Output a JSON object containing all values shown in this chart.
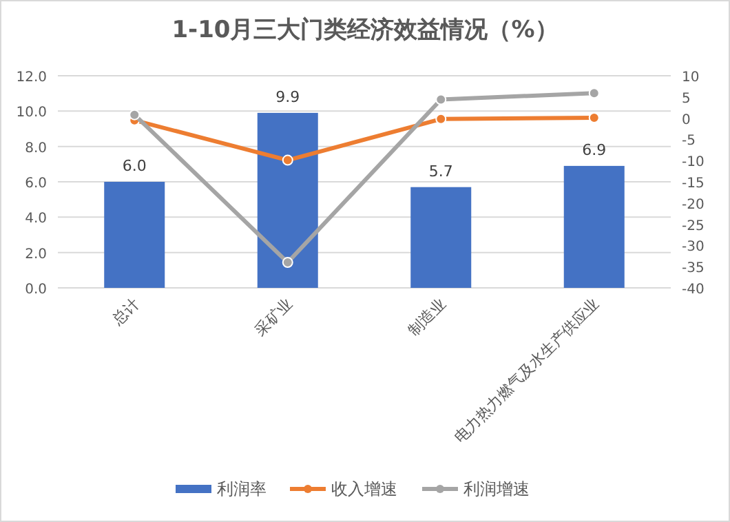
{
  "chart_data": {
    "type": "bar",
    "title": "1-10月三大门类经济效益情况（%）",
    "categories": [
      "总计",
      "采矿业",
      "制造业",
      "电力热力燃气及水生产供应业"
    ],
    "series": [
      {
        "name": "利润率",
        "color": "#4472c4",
        "values": [
          6.0,
          9.9,
          5.7,
          6.9
        ],
        "value_labels": [
          "6.0",
          "9.9",
          "5.7",
          "6.9"
        ]
      },
      {
        "name": "收入增速",
        "type": "line",
        "axis": "y2",
        "color": "#ed7d31",
        "values": [
          -0.5,
          -9.9,
          -0.2,
          0.1
        ]
      },
      {
        "name": "利润增速",
        "type": "line",
        "axis": "y2",
        "color": "#a5a5a5",
        "values": [
          0.8,
          -34,
          4.4,
          5.9
        ]
      }
    ],
    "ylim": [
      0,
      12
    ],
    "yticks": [
      {
        "value": 0,
        "label": "0.0"
      },
      {
        "value": 2,
        "label": "2.0"
      },
      {
        "value": 4,
        "label": "4.0"
      },
      {
        "value": 6,
        "label": "6.0"
      },
      {
        "value": 8,
        "label": "8.0"
      },
      {
        "value": 10,
        "label": "10.0"
      },
      {
        "value": 12,
        "label": "12.0"
      }
    ],
    "y2lim": [
      -40,
      10
    ],
    "y2ticks": [
      -40,
      -35,
      -30,
      -25,
      -20,
      -15,
      -10,
      -5,
      0,
      5,
      10
    ],
    "grid": "y",
    "legend": "bottom",
    "marker": "circle"
  }
}
